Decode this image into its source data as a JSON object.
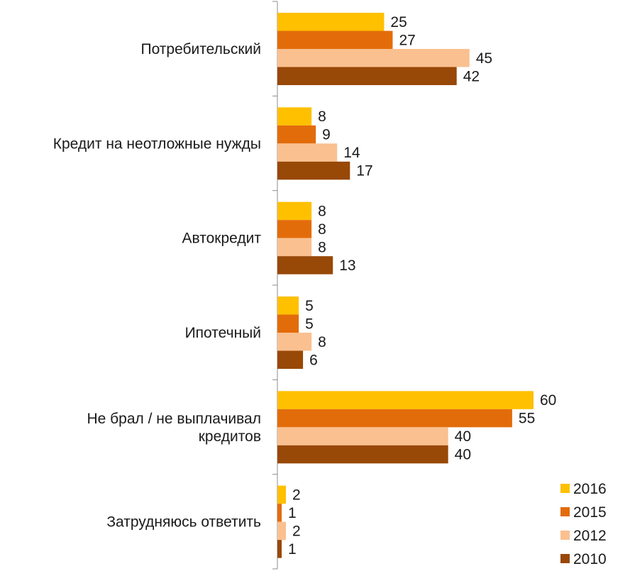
{
  "chart_data": {
    "type": "bar",
    "orientation": "horizontal",
    "categories": [
      [
        "Потребительский"
      ],
      [
        "Кредит на неотложные нужды"
      ],
      [
        "Автокредит"
      ],
      [
        "Ипотечный"
      ],
      [
        "Не брал / не выплачивал",
        "кредитов"
      ],
      [
        "Затрудняюсь ответить"
      ]
    ],
    "series": [
      {
        "name": "2016",
        "color": "#FFC000",
        "values": [
          25,
          8,
          8,
          5,
          60,
          2
        ]
      },
      {
        "name": "2015",
        "color": "#E36C0A",
        "values": [
          27,
          9,
          8,
          5,
          55,
          1
        ]
      },
      {
        "name": "2012",
        "color": "#FAC090",
        "values": [
          45,
          14,
          8,
          8,
          40,
          2
        ]
      },
      {
        "name": "2010",
        "color": "#984807",
        "values": [
          42,
          17,
          13,
          6,
          40,
          1
        ]
      }
    ],
    "xlim": [
      0,
      60
    ],
    "grid": false,
    "legend_position": "bottom-right",
    "data_labels": true
  }
}
